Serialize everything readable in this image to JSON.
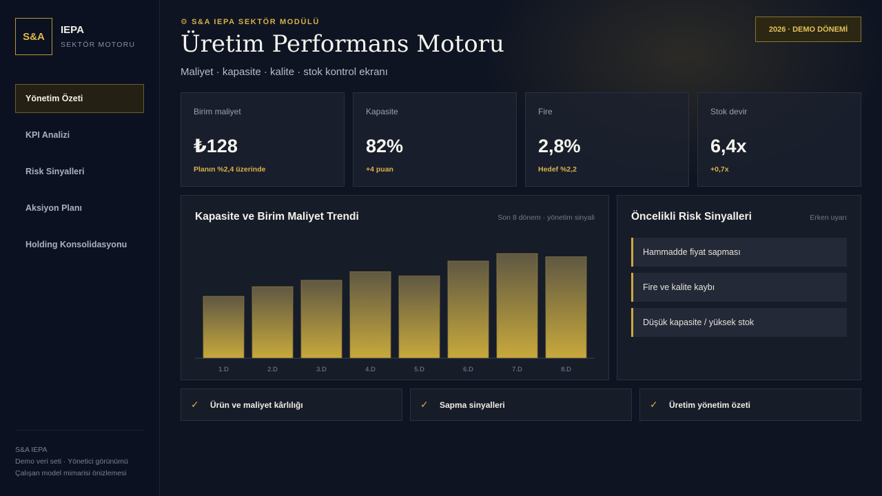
{
  "brand": {
    "logo": "S&A",
    "name": "IEPA",
    "subtitle": "SEKTÖR MOTORU"
  },
  "nav": [
    {
      "label": "Yönetim Özeti",
      "active": true
    },
    {
      "label": "KPI Analizi"
    },
    {
      "label": "Risk Sinyalleri"
    },
    {
      "label": "Aksiyon Planı"
    },
    {
      "label": "Holding Konsolidasyonu"
    }
  ],
  "footer": [
    "S&A IEPA",
    "Demo veri seti · Yönetici görünümü",
    "Çalışan model mimarisi önizlemesi"
  ],
  "header": {
    "eyebrow": "⚙ S&A IEPA SEKTÖR MODÜLÜ",
    "title": "Üretim Performans Motoru",
    "subtitle": "Maliyet · kapasite · kalite · stok kontrol ekranı",
    "period": "2026 · DEMO DÖNEMİ"
  },
  "kpis": [
    {
      "label": "Birim maliyet",
      "value": "₺128",
      "delta": "Planın %2,4 üzerinde"
    },
    {
      "label": "Kapasite",
      "value": "82%",
      "delta": "+4 puan"
    },
    {
      "label": "Fire",
      "value": "2,8%",
      "delta": "Hedef %2,2"
    },
    {
      "label": "Stok devir",
      "value": "6,4x",
      "delta": "+0,7x"
    }
  ],
  "trend_panel": {
    "title": "Kapasite ve Birim Maliyet Trendi",
    "note": "Son 8 dönem · yönetim sinyali"
  },
  "chart_data": {
    "type": "bar",
    "categories": [
      "1.D",
      "2.D",
      "3.D",
      "4.D",
      "5.D",
      "6.D",
      "7.D",
      "8.D"
    ],
    "values": [
      58,
      67,
      73,
      81,
      77,
      91,
      98,
      95
    ],
    "ylim": [
      0,
      100
    ],
    "grid": false,
    "bar_color_top": "#5f5843",
    "bar_color_bottom": "#c8a93c"
  },
  "risk_panel": {
    "title": "Öncelikli Risk Sinyalleri",
    "note": "Erken uyarı",
    "items": [
      "Hammadde fiyat sapması",
      "Fire ve kalite kaybı",
      "Düşük kapasite / yüksek stok"
    ]
  },
  "checks": [
    {
      "icon": "check-icon",
      "label": "Ürün ve maliyet kârlılığı"
    },
    {
      "icon": "check-icon",
      "label": "Sapma sinyalleri"
    },
    {
      "icon": "check-icon",
      "label": "Üretim yönetim özeti"
    }
  ],
  "colors": {
    "accent": "#d7b046",
    "background": "#0e1422",
    "panel": "#181d2a"
  }
}
